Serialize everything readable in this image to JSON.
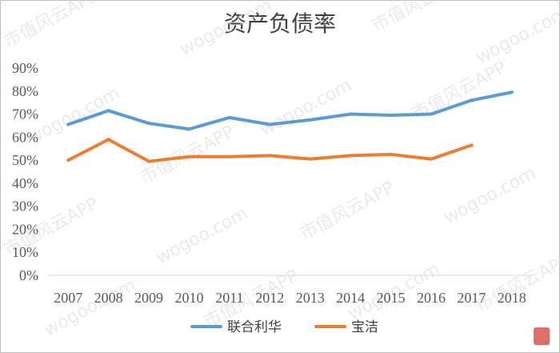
{
  "chart_data": {
    "type": "line",
    "title": "资产负债率",
    "categories": [
      "2007",
      "2008",
      "2009",
      "2010",
      "2011",
      "2012",
      "2013",
      "2014",
      "2015",
      "2016",
      "2017",
      "2018"
    ],
    "yticks": [
      "0%",
      "10%",
      "20%",
      "30%",
      "40%",
      "50%",
      "60%",
      "70%",
      "80%",
      "90%"
    ],
    "ylim": [
      0,
      90
    ],
    "ylabel": "",
    "xlabel": "",
    "grid": false,
    "legend_position": "bottom",
    "series": [
      {
        "name": "联合利华",
        "color": "#5b9bd5",
        "values": [
          65.5,
          71.5,
          66.0,
          63.5,
          68.5,
          65.5,
          67.5,
          70.0,
          69.5,
          70.0,
          76.0,
          79.5
        ]
      },
      {
        "name": "宝洁",
        "color": "#ed7d31",
        "values": [
          50.0,
          59.0,
          49.5,
          51.5,
          51.5,
          52.0,
          50.5,
          52.0,
          52.5,
          50.5,
          56.5,
          null
        ]
      }
    ]
  },
  "watermark": {
    "cn": "市值风云APP",
    "en": "wogoo.com"
  }
}
